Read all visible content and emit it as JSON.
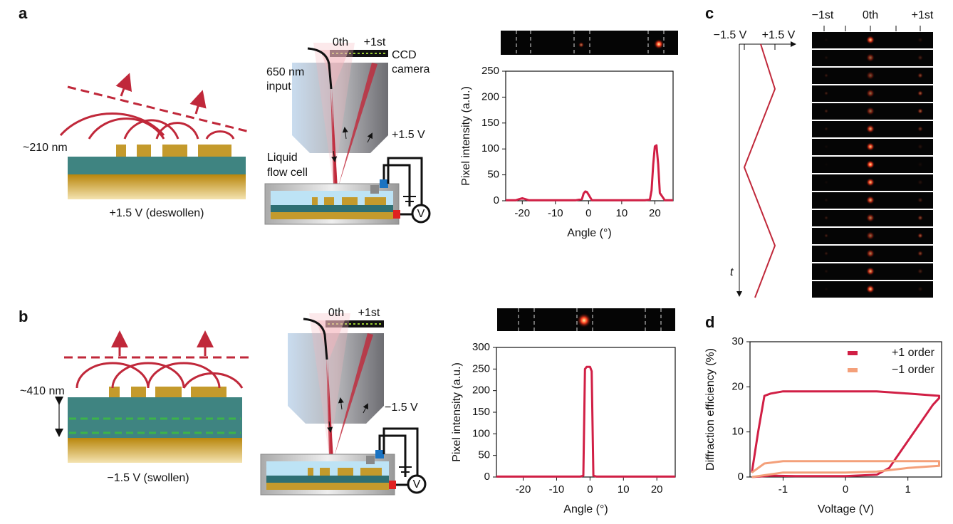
{
  "labels": {
    "a": "a",
    "b": "b",
    "c": "c",
    "d": "d"
  },
  "panel_a": {
    "thickness": "~210 nm",
    "state": "+1.5 V (deswollen)"
  },
  "setup_a": {
    "zeroth": "0th",
    "first": "+1st",
    "ccd": "CCD",
    "camera": "camera",
    "input1": "650 nm",
    "input2": "input",
    "voltage": "+1.5 V",
    "cell1": "Liquid",
    "cell2": "flow cell",
    "meter": "V"
  },
  "panel_b": {
    "thickness": "~410 nm",
    "state": "−1.5 V (swollen)"
  },
  "setup_b": {
    "zeroth": "0th",
    "first": "+1st",
    "voltage": "−1.5 V",
    "meter": "V"
  },
  "panel_c": {
    "low": "−1.5 V",
    "high": "+1.5 V",
    "time": "t",
    "minus": "−1st",
    "zero": "0th",
    "plus": "+1st"
  },
  "chart_data": [
    {
      "type": "line",
      "x_label": "Angle (°)",
      "y_label": "Pixel intensity (a.u.)",
      "color": "#d11f45",
      "x": [
        -25,
        -22,
        -21,
        -20,
        -19,
        -18,
        -4,
        -2,
        -1.5,
        -1,
        -0.5,
        0,
        1,
        3,
        17,
        18.5,
        19,
        19.5,
        20,
        20.5,
        21,
        21.5,
        23,
        25.5
      ],
      "values": [
        1,
        1,
        3,
        5,
        3,
        1,
        1,
        3,
        14,
        18,
        17,
        12,
        1,
        1,
        1,
        2,
        20,
        70,
        105,
        107,
        70,
        15,
        1,
        1
      ],
      "xlim": [
        -25,
        25.5
      ],
      "xticks": [
        -20,
        -10,
        0,
        10,
        20
      ],
      "ylim": [
        0,
        250
      ],
      "yticks": [
        0,
        50,
        100,
        150,
        200,
        250
      ]
    },
    {
      "type": "line",
      "x_label": "Angle (°)",
      "y_label": "Pixel intensity (a.u.)",
      "color": "#d11f45",
      "x": [
        -28,
        -3,
        -2,
        -1.5,
        -1,
        0,
        0.5,
        1,
        2,
        25.5
      ],
      "values": [
        1,
        1,
        3,
        250,
        255,
        255,
        245,
        3,
        1,
        1
      ],
      "xlim": [
        -28,
        25.5
      ],
      "xticks": [
        -20,
        -10,
        0,
        10,
        20
      ],
      "ylim": [
        0,
        300
      ],
      "yticks": [
        0,
        50,
        100,
        150,
        200,
        250,
        300
      ]
    },
    {
      "type": "line",
      "x_label": "Voltage (V)",
      "y_label": "Diffraction efficiency (%)",
      "legend": "upper right",
      "series": [
        {
          "name": "+1 order",
          "color": "#d11f45",
          "x": [
            -1.5,
            -1.2,
            -0.8,
            0,
            0.5,
            0.7,
            1.0,
            1.3,
            1.4,
            1.5,
            1.5,
            1.0,
            0.5,
            0,
            -0.5,
            -1.0,
            -1.2,
            -1.3,
            -1.4,
            -1.5
          ],
          "values": [
            0,
            0.3,
            0.2,
            0.2,
            0.5,
            2,
            8,
            14,
            16,
            17.5,
            18,
            18.5,
            19,
            19,
            19,
            19,
            18.5,
            18,
            10,
            1
          ]
        },
        {
          "name": "−1 order",
          "color": "#f4a07a",
          "x": [
            -1.5,
            -1,
            0,
            0.5,
            1,
            1.5,
            1.5,
            1,
            0,
            -1,
            -1.3,
            -1.5
          ],
          "values": [
            0,
            1,
            1,
            1.2,
            2,
            2.5,
            3.5,
            3.5,
            3.5,
            3.5,
            3,
            1
          ]
        }
      ],
      "xlim": [
        -1.53,
        1.54
      ],
      "xticks": [
        -1,
        0,
        1
      ],
      "ylim": [
        0,
        30
      ],
      "yticks": [
        0,
        10,
        20,
        30
      ]
    }
  ]
}
